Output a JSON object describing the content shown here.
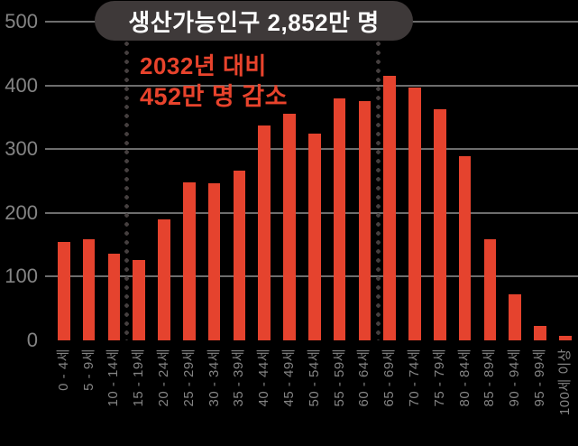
{
  "title_badge": "생산가능인구 2,852만 명",
  "annotation": {
    "line1": "2032년 대비",
    "line2": "452만 명 감소"
  },
  "colors": {
    "background": "#000000",
    "bar": "#e5432e",
    "axis_label": "#848484",
    "gridline": "#6d6d6d",
    "badge_bg": "#3e3939",
    "badge_text": "#fdfdfd",
    "annotation_text": "#e8432c",
    "dotted_line": "#453f3f"
  },
  "chart_data": {
    "type": "bar",
    "title": "생산가능인구 2,852만 명",
    "annotation": "2032년 대비 452만 명 감소",
    "categories": [
      "0 - 4세",
      "5 - 9세",
      "10 - 14세",
      "15 - 19세",
      "20 - 24세",
      "25 - 29세",
      "30 - 34세",
      "35 - 39세",
      "40 - 44세",
      "45 - 49세",
      "50 - 54세",
      "55 - 59세",
      "60 - 64세",
      "65 - 69세",
      "70 - 74세",
      "75 - 79세",
      "80 - 84세",
      "85 - 89세",
      "90 - 94세",
      "95 - 99세",
      "100세 이상"
    ],
    "values": [
      154,
      158,
      136,
      126,
      190,
      248,
      246,
      266,
      337,
      356,
      325,
      380,
      375,
      415,
      397,
      363,
      289,
      158,
      72,
      23,
      7
    ],
    "unit": "만 명",
    "xlabel": "",
    "ylabel": "",
    "y_ticks": [
      0,
      100,
      200,
      300,
      400,
      500
    ],
    "ylim": [
      0,
      500
    ],
    "grid": true,
    "legend": false,
    "highlight_range": {
      "from_category": "15 - 19세",
      "to_category": "60 - 64세",
      "style": "dotted-vertical-lines"
    }
  }
}
